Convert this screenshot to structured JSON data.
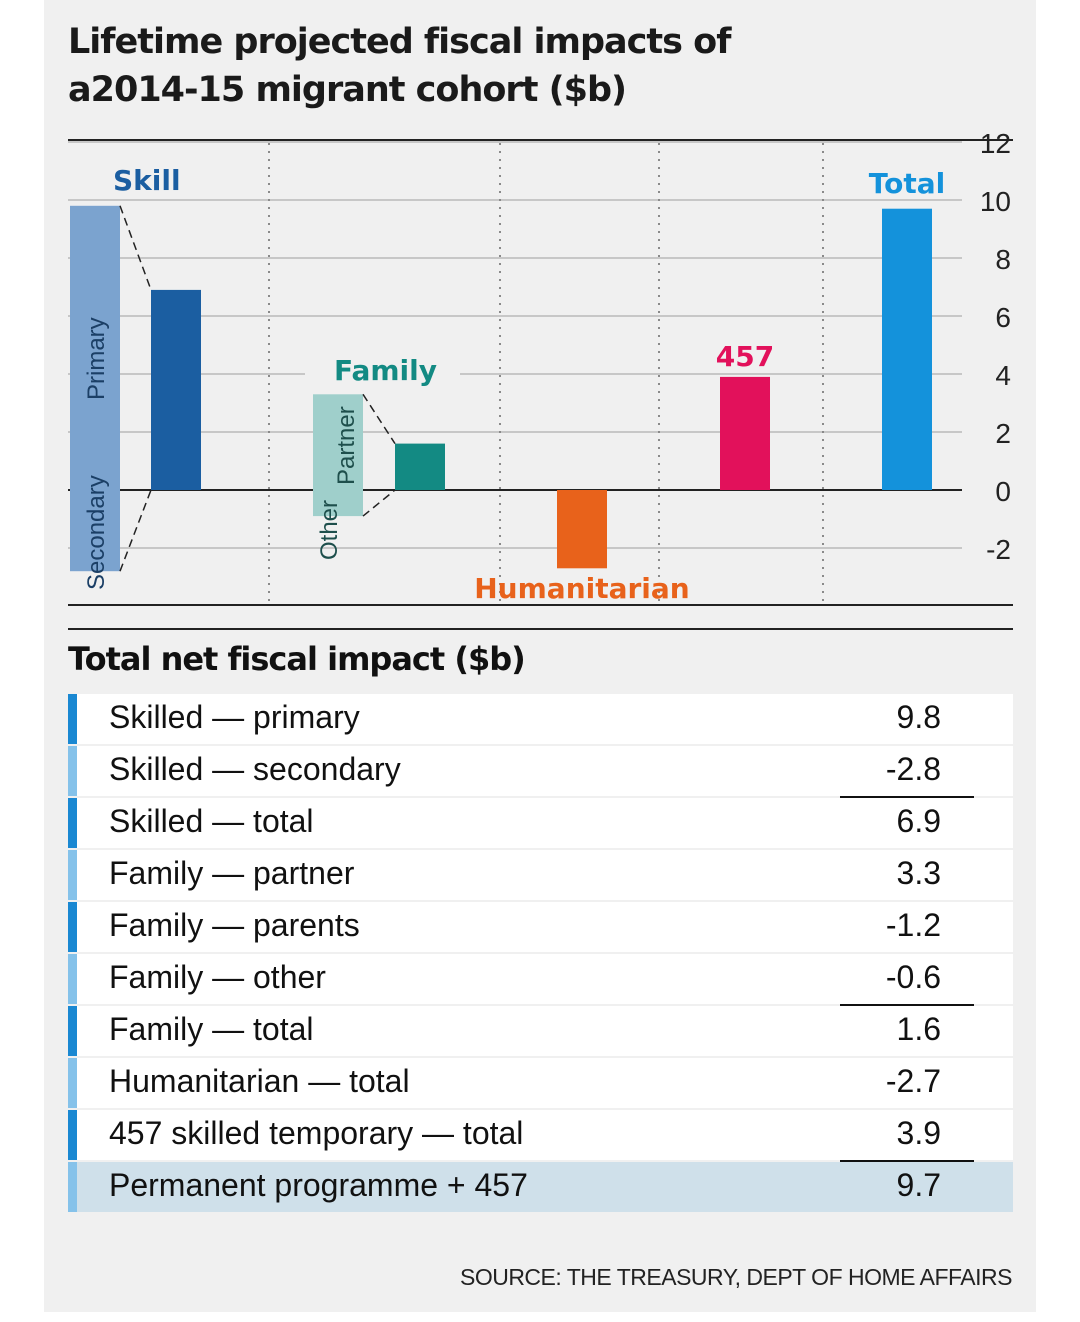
{
  "title_line1": "Lifetime projected fiscal impacts of",
  "title_line2": "a2014-15 migrant cohort ($b)",
  "colors": {
    "skill_primary": "#7ba3cf",
    "skill_net": "#1b5ea1",
    "family_stacked": "#9fcfcb",
    "family_net": "#138a83",
    "humanitarian": "#e8621b",
    "457": "#e2115b",
    "total": "#1492db",
    "row_dark": "#1a88d2",
    "row_light": "#85c2ea",
    "highlight": "#cfe0ea"
  },
  "chart_data": {
    "type": "bar",
    "ylim": [
      -3,
      12
    ],
    "yticks": [
      12,
      10,
      8,
      6,
      4,
      2,
      0,
      -2
    ],
    "groups": [
      {
        "name": "Skill",
        "stacked": [
          {
            "label": "Primary",
            "value": 9.8
          },
          {
            "label": "Secondary",
            "value": -2.8
          }
        ],
        "net": 6.9
      },
      {
        "name": "Family",
        "stacked": [
          {
            "label": "Partner",
            "value": 3.3
          },
          {
            "label": "Other",
            "value": -0.6
          }
        ],
        "net": 1.6
      },
      {
        "name": "Humanitarian",
        "net": -2.7
      },
      {
        "name": "457",
        "net": 3.9
      },
      {
        "name": "Total",
        "net": 9.7
      }
    ]
  },
  "table": {
    "title": "Total net fiscal impact ($b)",
    "rows": [
      {
        "label": "Skilled — primary",
        "value": "9.8",
        "underline": false
      },
      {
        "label": "Skilled — secondary",
        "value": "-2.8",
        "underline": true
      },
      {
        "label": "Skilled — total",
        "value": "6.9",
        "underline": false
      },
      {
        "label": "Family — partner",
        "value": "3.3",
        "underline": false
      },
      {
        "label": "Family — parents",
        "value": "-1.2",
        "underline": false
      },
      {
        "label": "Family — other",
        "value": "-0.6",
        "underline": true
      },
      {
        "label": "Family — total",
        "value": "1.6",
        "underline": false
      },
      {
        "label": "Humanitarian — total",
        "value": "-2.7",
        "underline": false
      },
      {
        "label": "457 skilled temporary — total",
        "value": "3.9",
        "underline": true
      },
      {
        "label": "Permanent programme + 457",
        "value": "9.7",
        "underline": false,
        "highlight": true
      }
    ]
  },
  "source": "SOURCE: THE TREASURY, DEPT OF HOME AFFAIRS"
}
